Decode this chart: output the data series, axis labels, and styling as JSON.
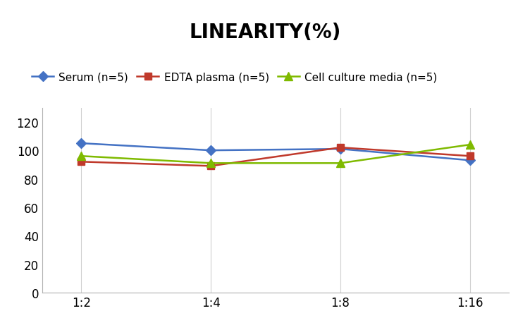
{
  "title": "LINEARITY(%)",
  "x_labels": [
    "1:2",
    "1:4",
    "1:8",
    "1:16"
  ],
  "series": [
    {
      "label": "Serum (n=5)",
      "values": [
        105,
        100,
        101,
        93
      ],
      "color": "#4472C4",
      "marker": "D",
      "markersize": 7,
      "linewidth": 1.8
    },
    {
      "label": "EDTA plasma (n=5)",
      "values": [
        92,
        89,
        102,
        96
      ],
      "color": "#C0392B",
      "marker": "s",
      "markersize": 7,
      "linewidth": 1.8
    },
    {
      "label": "Cell culture media (n=5)",
      "values": [
        96,
        91,
        91,
        104
      ],
      "color": "#7FBA00",
      "marker": "^",
      "markersize": 8,
      "linewidth": 1.8
    }
  ],
  "ylim": [
    0,
    130
  ],
  "yticks": [
    0,
    20,
    40,
    60,
    80,
    100,
    120
  ],
  "background_color": "#ffffff",
  "grid_color": "#d0d0d0",
  "title_fontsize": 20,
  "legend_fontsize": 11,
  "tick_fontsize": 12
}
